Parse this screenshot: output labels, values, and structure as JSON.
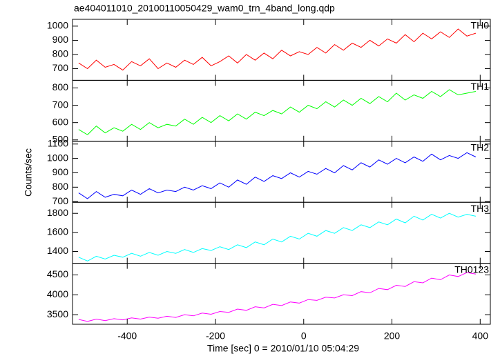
{
  "chart_data": {
    "type": "line",
    "title": "ae404011010_20100110050429_wam0_trn_4band_long.qdp",
    "x_label": "Time [sec] 0 = 2010/01/10 05:04:29",
    "y_label": "Counts/sec",
    "xlim": [
      -524,
      423
    ],
    "xticks": [
      -400,
      -200,
      0,
      200,
      400
    ],
    "x": [
      -510,
      -490,
      -470,
      -450,
      -430,
      -410,
      -390,
      -370,
      -350,
      -330,
      -310,
      -290,
      -270,
      -250,
      -230,
      -210,
      -190,
      -170,
      -150,
      -130,
      -110,
      -90,
      -70,
      -50,
      -30,
      -10,
      10,
      30,
      50,
      70,
      90,
      110,
      130,
      150,
      170,
      190,
      210,
      230,
      250,
      270,
      290,
      310,
      330,
      350,
      370,
      390
    ],
    "series": [
      {
        "name": "TH0",
        "color": "#ff0000",
        "ylim": [
          618,
          1048
        ],
        "yticks": [
          700,
          800,
          900,
          1000
        ],
        "values": [
          740,
          700,
          760,
          710,
          730,
          690,
          750,
          720,
          770,
          700,
          740,
          710,
          760,
          730,
          780,
          720,
          750,
          790,
          740,
          800,
          760,
          810,
          770,
          830,
          790,
          820,
          800,
          850,
          810,
          870,
          830,
          880,
          850,
          900,
          860,
          910,
          880,
          940,
          890,
          950,
          910,
          960,
          920,
          980,
          930,
          950
        ]
      },
      {
        "name": "TH1",
        "color": "#00ff00",
        "ylim": [
          492,
          844
        ],
        "yticks": [
          500,
          600,
          700,
          800
        ],
        "values": [
          560,
          530,
          580,
          540,
          570,
          550,
          590,
          560,
          600,
          570,
          590,
          580,
          620,
          590,
          630,
          600,
          640,
          610,
          650,
          620,
          660,
          640,
          670,
          650,
          690,
          660,
          700,
          680,
          720,
          690,
          730,
          700,
          740,
          710,
          750,
          720,
          770,
          730,
          760,
          740,
          780,
          750,
          790,
          760,
          770,
          780
        ]
      },
      {
        "name": "TH2",
        "color": "#0000ff",
        "ylim": [
          695,
          1119
        ],
        "yticks": [
          700,
          800,
          900,
          1000,
          1100
        ],
        "values": [
          760,
          720,
          770,
          730,
          750,
          740,
          780,
          750,
          790,
          760,
          780,
          770,
          800,
          780,
          810,
          790,
          830,
          800,
          850,
          820,
          870,
          840,
          880,
          860,
          900,
          870,
          910,
          890,
          930,
          900,
          950,
          920,
          970,
          940,
          990,
          960,
          1000,
          970,
          1010,
          980,
          1030,
          990,
          1020,
          1000,
          1040,
          1010
        ]
      },
      {
        "name": "TH3",
        "color": "#00ffff",
        "ylim": [
          1276,
          1916
        ],
        "yticks": [
          1400,
          1600,
          1800
        ],
        "values": [
          1340,
          1300,
          1350,
          1320,
          1360,
          1340,
          1380,
          1350,
          1390,
          1360,
          1400,
          1380,
          1420,
          1390,
          1430,
          1410,
          1450,
          1420,
          1470,
          1440,
          1500,
          1470,
          1530,
          1500,
          1560,
          1530,
          1590,
          1560,
          1620,
          1590,
          1650,
          1620,
          1680,
          1650,
          1710,
          1680,
          1740,
          1700,
          1770,
          1730,
          1790,
          1750,
          1800,
          1760,
          1790,
          1770
        ]
      },
      {
        "name": "TH0123",
        "color": "#ff00ff",
        "ylim": [
          3259,
          4793
        ],
        "yticks": [
          3500,
          4000,
          4500
        ],
        "values": [
          3380,
          3330,
          3390,
          3350,
          3400,
          3370,
          3420,
          3390,
          3440,
          3410,
          3460,
          3430,
          3500,
          3470,
          3540,
          3510,
          3580,
          3560,
          3640,
          3610,
          3700,
          3670,
          3760,
          3730,
          3820,
          3790,
          3880,
          3860,
          3940,
          3920,
          4000,
          3980,
          4080,
          4050,
          4160,
          4130,
          4240,
          4210,
          4330,
          4300,
          4420,
          4380,
          4500,
          4460,
          4560,
          4520
        ]
      }
    ]
  }
}
